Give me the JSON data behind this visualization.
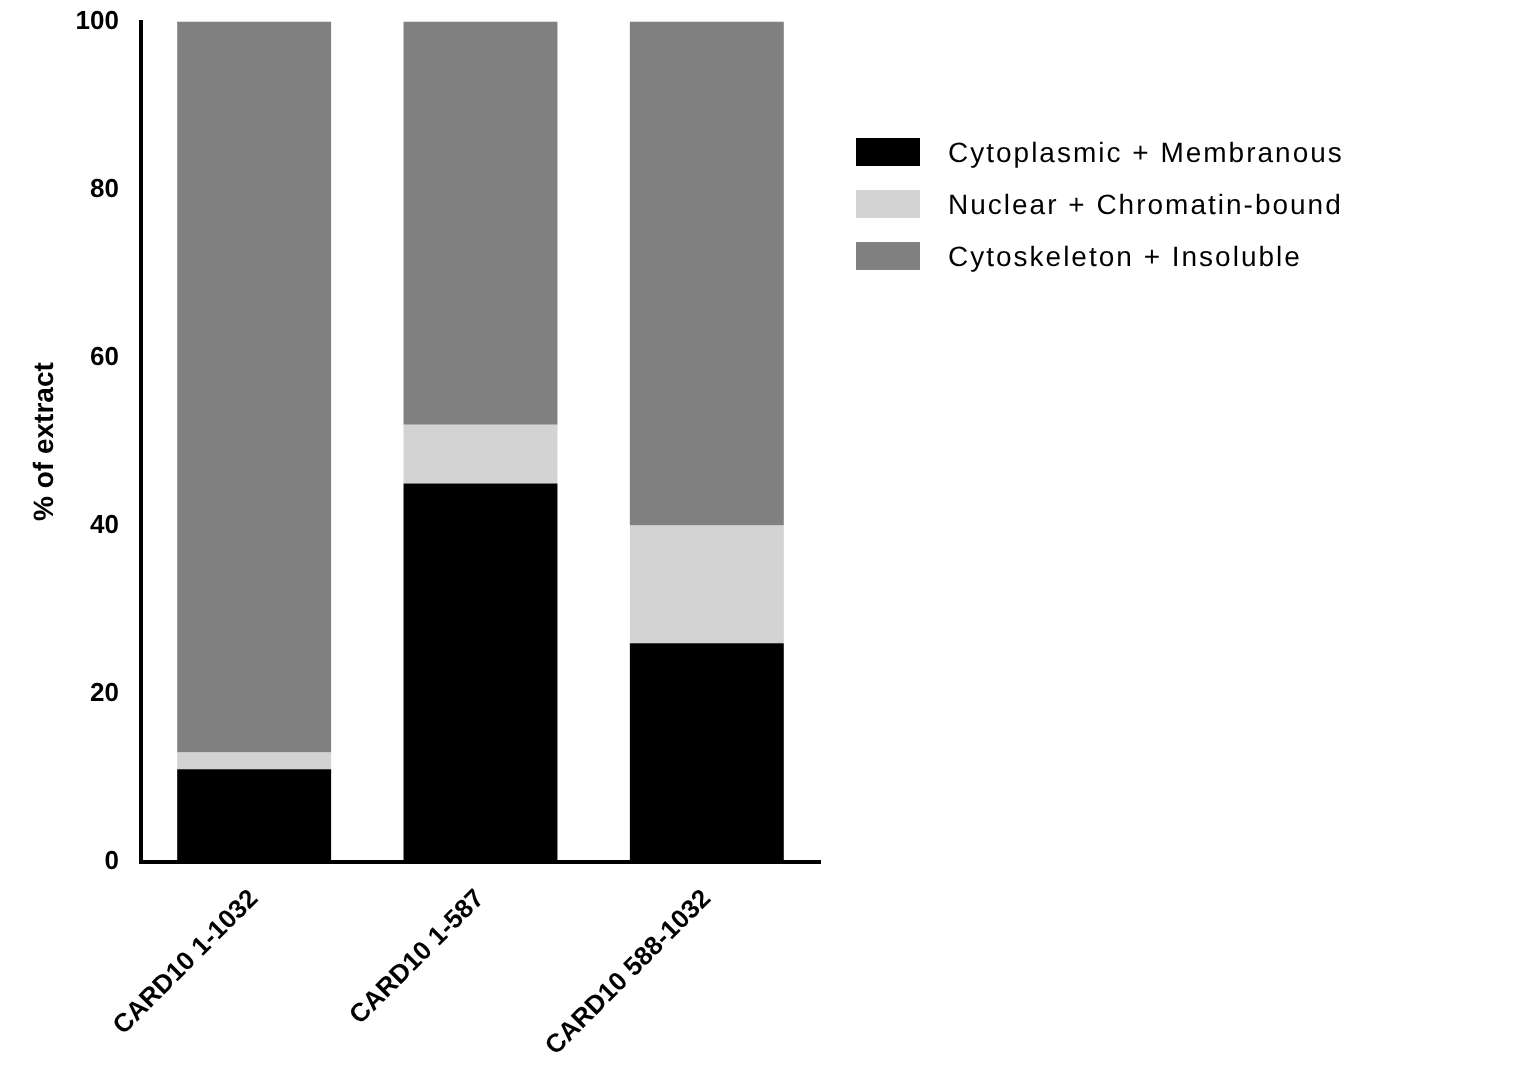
{
  "chart_data": {
    "type": "bar",
    "ylabel": "% of extract",
    "categories": [
      "CARD10 1-1032",
      "CARD10 1-587",
      "CARD10 588-1032"
    ],
    "series": [
      {
        "name": "Cytoplasmic + Membranous",
        "color": "#000000",
        "values": [
          11,
          45,
          26
        ]
      },
      {
        "name": "Nuclear + Chromatin-bound",
        "color": "#d3d3d3",
        "values": [
          2,
          7,
          14
        ]
      },
      {
        "name": "Cytoskeleton + Insoluble",
        "color": "#808080",
        "values": [
          87,
          48,
          60
        ]
      }
    ],
    "stacked": true,
    "ylim": [
      0,
      100
    ],
    "yticks": [
      0,
      20,
      40,
      60,
      80,
      100
    ],
    "grid": false,
    "legend": "top right"
  }
}
